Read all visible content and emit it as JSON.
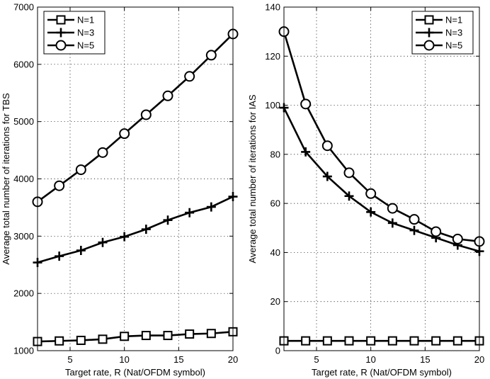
{
  "chart_data": [
    {
      "type": "line",
      "title": "",
      "xlabel": "Target rate, R (Nat/OFDM symbol)",
      "ylabel": "Average total number of iterations  for TBS",
      "xlim": [
        2,
        20
      ],
      "ylim": [
        1000,
        7000
      ],
      "xticks": [
        5,
        10,
        15,
        20
      ],
      "yticks": [
        1000,
        2000,
        3000,
        4000,
        5000,
        6000,
        7000
      ],
      "grid": true,
      "legend_position": "top-left",
      "x": [
        2,
        4,
        6,
        8,
        10,
        12,
        14,
        16,
        18,
        20
      ],
      "series": [
        {
          "name": "N=1",
          "marker": "square",
          "values": [
            1160,
            1170,
            1180,
            1200,
            1250,
            1265,
            1265,
            1290,
            1300,
            1330
          ]
        },
        {
          "name": "N=3",
          "marker": "plus",
          "values": [
            2540,
            2650,
            2750,
            2890,
            2990,
            3120,
            3280,
            3410,
            3510,
            3690
          ]
        },
        {
          "name": "N=5",
          "marker": "circle",
          "values": [
            3600,
            3880,
            4160,
            4460,
            4790,
            5120,
            5450,
            5790,
            6160,
            6530
          ]
        }
      ]
    },
    {
      "type": "line",
      "title": "",
      "xlabel": "Target rate, R (Nat/OFDM symbol)",
      "ylabel": "Average total number of iterations  for IAS",
      "xlim": [
        2,
        20
      ],
      "ylim": [
        0,
        140
      ],
      "xticks": [
        5,
        10,
        15,
        20
      ],
      "yticks": [
        0,
        20,
        40,
        60,
        80,
        100,
        120,
        140
      ],
      "grid": true,
      "legend_position": "top-right",
      "x": [
        2,
        4,
        6,
        8,
        10,
        12,
        14,
        16,
        18,
        20
      ],
      "series": [
        {
          "name": "N=1",
          "marker": "square",
          "values": [
            4,
            4,
            4,
            4,
            4,
            4,
            4,
            4,
            4,
            4
          ]
        },
        {
          "name": "N=3",
          "marker": "plus",
          "values": [
            99,
            81,
            71,
            63,
            56.5,
            52,
            49,
            46,
            43,
            40.5
          ]
        },
        {
          "name": "N=5",
          "marker": "circle",
          "values": [
            130,
            100.5,
            83.5,
            72.5,
            64,
            58,
            53.5,
            48.5,
            45.5,
            44.5
          ]
        }
      ]
    }
  ]
}
